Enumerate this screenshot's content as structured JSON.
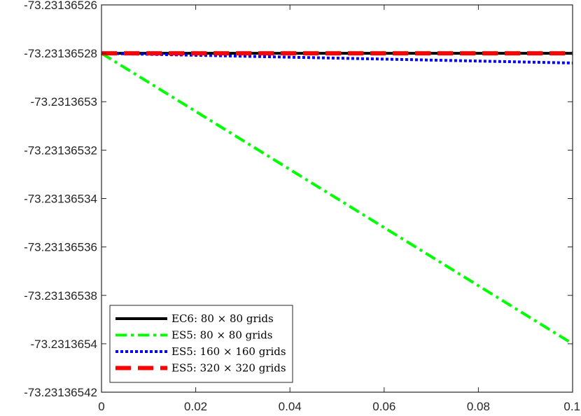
{
  "chart_data": {
    "type": "line",
    "title": "",
    "xlabel": "",
    "ylabel": "",
    "xlim": [
      0,
      0.1
    ],
    "ylim": [
      -73.23136542,
      -73.23136526
    ],
    "x_ticks": [
      0,
      0.02,
      0.04,
      0.06,
      0.08,
      0.1
    ],
    "x_tick_labels": [
      "0",
      "0.02",
      "0.04",
      "0.06",
      "0.08",
      "0.1"
    ],
    "y_ticks": [
      -73.23136526,
      -73.23136528,
      -73.2313653,
      -73.23136532,
      -73.23136534,
      -73.23136536,
      -73.23136538,
      -73.2313654,
      -73.23136542
    ],
    "y_tick_labels": [
      "-73.23136526",
      "-73.23136528",
      "-73.2313653",
      "-73.23136532",
      "-73.23136534",
      "-73.23136536",
      "-73.23136538",
      "-73.2313654",
      "-73.23136542"
    ],
    "grid": false,
    "legend_position": "bottom-left",
    "series": [
      {
        "name": "EC6:  80 × 80 grids",
        "color": "#000000",
        "style": "solid",
        "x": [
          0,
          0.1
        ],
        "y": [
          -73.23136528,
          -73.23136528
        ]
      },
      {
        "name": "ES5:  80 × 80 grids",
        "color": "#00ff00",
        "style": "dash-dot",
        "x": [
          0,
          0.1
        ],
        "y": [
          -73.23136528,
          -73.2313654
        ]
      },
      {
        "name": "ES5:  160 × 160 grids",
        "color": "#0000ff",
        "style": "dotted",
        "x": [
          0,
          0.1
        ],
        "y": [
          -73.23136528,
          -73.231365284
        ]
      },
      {
        "name": "ES5:  320 × 320 grids",
        "color": "#ff0000",
        "style": "dashed",
        "x": [
          0,
          0.1
        ],
        "y": [
          -73.23136528,
          -73.23136528
        ]
      }
    ]
  }
}
